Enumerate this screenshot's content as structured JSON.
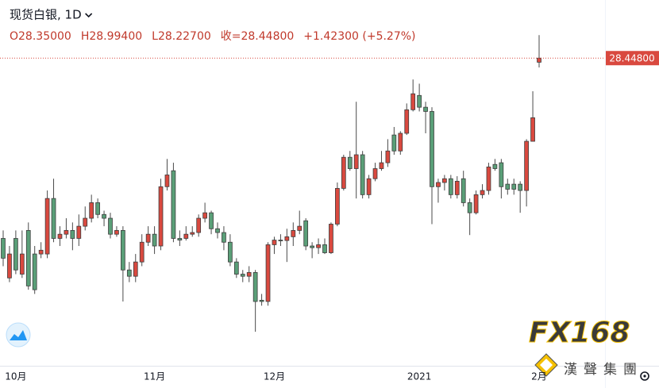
{
  "chart_data": {
    "type": "candlestick",
    "title": "现货白银, 1D",
    "ohlc_legend": [
      "O28.35000",
      "H28.99400",
      "L28.22700",
      "收=28.44800",
      "+1.42300 (+5.27%)"
    ],
    "categories": [
      null,
      null,
      "10月",
      null,
      null,
      null,
      null,
      null,
      null,
      null,
      null,
      null,
      null,
      null,
      null,
      null,
      null,
      null,
      null,
      null,
      null,
      null,
      null,
      null,
      "11月",
      null,
      null,
      null,
      null,
      null,
      null,
      null,
      null,
      null,
      null,
      null,
      null,
      null,
      null,
      null,
      null,
      null,
      null,
      "12月",
      null,
      null,
      null,
      null,
      null,
      null,
      null,
      null,
      null,
      null,
      null,
      null,
      null,
      null,
      null,
      null,
      null,
      null,
      null,
      null,
      null,
      null,
      "2021",
      null,
      null,
      null,
      null,
      null,
      null,
      null,
      null,
      null,
      null,
      null,
      null,
      null,
      null,
      null,
      null,
      null,
      null,
      "2月"
    ],
    "open": [
      24.16,
      23.22,
      24.16,
      23.31,
      24.35,
      23.79,
      23.79,
      23.79,
      25.11,
      24.16,
      24.26,
      24.35,
      24.16,
      24.45,
      24.64,
      25.01,
      24.73,
      24.64,
      24.26,
      24.35,
      23.41,
      23.26,
      23.6,
      24.07,
      24.26,
      23.98,
      25.39,
      25.77,
      24.16,
      24.16,
      24.26,
      24.3,
      24.64,
      24.77,
      24.39,
      24.3,
      24.07,
      23.6,
      23.31,
      23.26,
      23.35,
      22.69,
      22.66,
      24.01,
      24.12,
      24.11,
      24.2,
      24.35,
      24.58,
      23.98,
      23.94,
      24.01,
      23.82,
      24.5,
      25.35,
      26.09,
      25.82,
      26.15,
      25.2,
      25.58,
      25.82,
      25.96,
      26.62,
      26.24,
      26.66,
      27.22,
      27.56,
      27.28,
      27.18,
      25.39,
      25.49,
      25.58,
      25.2,
      25.58,
      25.01,
      24.77,
      25.2,
      25.3,
      25.92,
      25.96,
      25.45,
      25.45,
      25.45,
      25.3,
      26.47,
      28.35
    ],
    "high": [
      24.35,
      23.98,
      24.35,
      24.35,
      24.54,
      23.98,
      24.07,
      25.3,
      25.58,
      24.45,
      24.64,
      24.54,
      24.73,
      24.92,
      25.2,
      25.11,
      24.82,
      24.77,
      24.45,
      24.45,
      23.6,
      23.79,
      24.26,
      24.45,
      24.45,
      25.58,
      26.05,
      25.96,
      24.35,
      24.45,
      24.45,
      24.73,
      25.01,
      24.82,
      24.54,
      24.45,
      24.26,
      23.69,
      23.41,
      23.5,
      23.41,
      22.84,
      24.07,
      24.2,
      24.26,
      24.39,
      24.54,
      24.82,
      24.64,
      24.07,
      24.16,
      24.16,
      24.54,
      25.49,
      26.15,
      26.24,
      27.41,
      26.24,
      25.67,
      25.96,
      26.24,
      26.52,
      26.81,
      26.71,
      27.37,
      27.94,
      27.84,
      27.41,
      27.28,
      25.58,
      25.67,
      25.67,
      25.64,
      25.77,
      25.11,
      25.3,
      25.45,
      25.96,
      26.05,
      26.05,
      25.58,
      25.58,
      25.52,
      26.52,
      27.66,
      28.994
    ],
    "low": [
      23.5,
      23.12,
      23.31,
      23.22,
      22.94,
      22.84,
      23.69,
      23.69,
      24.07,
      23.98,
      24.16,
      23.88,
      23.98,
      24.35,
      24.54,
      24.64,
      24.45,
      24.16,
      24.2,
      22.66,
      23.12,
      23.12,
      23.5,
      23.98,
      23.79,
      23.88,
      25.3,
      24.07,
      23.98,
      24.11,
      24.2,
      24.2,
      24.54,
      24.26,
      24.16,
      23.88,
      23.5,
      23.22,
      23.12,
      23.12,
      21.94,
      22.56,
      22.56,
      23.79,
      23.98,
      23.6,
      23.98,
      24.26,
      23.88,
      23.69,
      23.79,
      23.79,
      23.79,
      24.45,
      25.3,
      25.77,
      25.11,
      25.11,
      25.11,
      25.52,
      25.77,
      25.86,
      26.15,
      26.15,
      26.62,
      27.18,
      27.18,
      26.66,
      24.5,
      25.01,
      25.3,
      25.11,
      25.11,
      24.92,
      24.24,
      24.73,
      25.11,
      25.2,
      25.77,
      25.11,
      25.2,
      25.2,
      24.77,
      24.92,
      26.47,
      28.227
    ],
    "close": [
      23.69,
      23.79,
      23.41,
      23.79,
      23.03,
      22.94,
      23.88,
      25.11,
      24.16,
      24.26,
      24.35,
      24.16,
      24.45,
      24.64,
      25.01,
      24.73,
      24.64,
      24.26,
      24.35,
      23.41,
      23.26,
      23.6,
      24.07,
      24.26,
      23.98,
      25.39,
      25.67,
      24.16,
      24.12,
      24.26,
      24.3,
      24.64,
      24.77,
      24.39,
      24.3,
      24.07,
      23.6,
      23.31,
      23.26,
      23.35,
      22.66,
      22.66,
      24.01,
      24.12,
      24.11,
      24.2,
      24.35,
      24.45,
      23.98,
      23.94,
      24.01,
      23.82,
      24.5,
      25.35,
      26.09,
      25.82,
      26.15,
      25.2,
      25.58,
      25.82,
      25.96,
      26.24,
      26.24,
      26.66,
      27.22,
      27.6,
      27.28,
      27.18,
      25.39,
      25.49,
      25.58,
      25.2,
      25.52,
      25.01,
      24.77,
      25.2,
      25.3,
      25.86,
      25.82,
      25.39,
      25.33,
      25.33,
      25.3,
      26.47,
      27.03,
      28.448
    ],
    "ylim": [
      21.15,
      29.83
    ],
    "last_price": {
      "value": 28.448,
      "label": "28.44800"
    },
    "up_color": "#d9493f",
    "down_color": "#5a9f78",
    "watermark": {
      "logo": "FX168",
      "company": "漢聲集團"
    }
  }
}
